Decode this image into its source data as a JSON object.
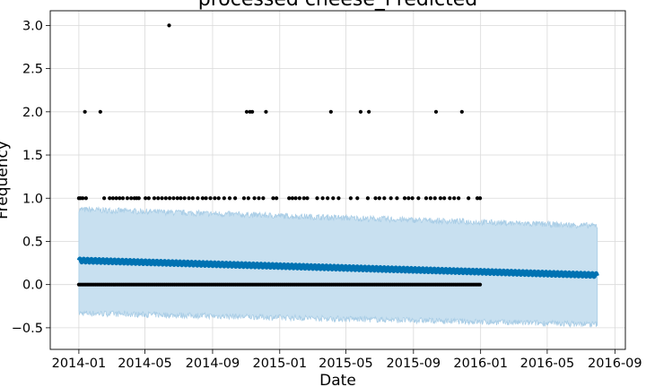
{
  "chart_data": {
    "type": "line",
    "title": "processed cheese_Predicted",
    "xlabel": "Date",
    "ylabel": "Frequency",
    "grid": true,
    "x_range": [
      "2013-11-10",
      "2016-09-20"
    ],
    "ylim": [
      -0.75,
      3.17
    ],
    "x_ticks": [
      "2014-01",
      "2014-05",
      "2014-09",
      "2015-01",
      "2015-05",
      "2015-09",
      "2016-01",
      "2016-05",
      "2016-09"
    ],
    "x_tick_dates": [
      "2014-01-01",
      "2014-05-01",
      "2014-09-01",
      "2015-01-01",
      "2015-05-01",
      "2015-09-01",
      "2016-01-01",
      "2016-05-01",
      "2016-09-01"
    ],
    "y_ticks": [
      -0.5,
      0.0,
      0.5,
      1.0,
      1.5,
      2.0,
      2.5,
      3.0
    ],
    "y_tick_labels": [
      "−0.5",
      "0.0",
      "0.5",
      "1.0",
      "1.5",
      "2.0",
      "2.5",
      "3.0"
    ],
    "colors": {
      "forecast_line": "#0072b2",
      "uncertainty_band": "#c8e0f0",
      "band_edge": "#a9cde6",
      "observed_points": "#000000"
    },
    "forecast": {
      "start": "2014-01-01",
      "end": "2016-07-31",
      "yhat_start": 0.28,
      "yhat_end": 0.11,
      "weekly_amplitude": 0.022,
      "lower_start": -0.33,
      "lower_end": -0.46,
      "upper_start": 0.87,
      "upper_end": 0.68
    },
    "observed": [
      {
        "x": "2014-01-01",
        "y": 1
      },
      {
        "x": "2014-01-04",
        "y": 1
      },
      {
        "x": "2014-01-08",
        "y": 1
      },
      {
        "x": "2014-01-12",
        "y": 2
      },
      {
        "x": "2014-01-14",
        "y": 1
      },
      {
        "x": "2014-02-09",
        "y": 2
      },
      {
        "x": "2014-02-16",
        "y": 1
      },
      {
        "x": "2014-02-26",
        "y": 1
      },
      {
        "x": "2014-03-04",
        "y": 1
      },
      {
        "x": "2014-03-10",
        "y": 1
      },
      {
        "x": "2014-03-16",
        "y": 1
      },
      {
        "x": "2014-03-22",
        "y": 1
      },
      {
        "x": "2014-03-30",
        "y": 1
      },
      {
        "x": "2014-04-06",
        "y": 1
      },
      {
        "x": "2014-04-12",
        "y": 1
      },
      {
        "x": "2014-04-16",
        "y": 1
      },
      {
        "x": "2014-04-20",
        "y": 1
      },
      {
        "x": "2014-05-02",
        "y": 1
      },
      {
        "x": "2014-05-08",
        "y": 1
      },
      {
        "x": "2014-05-18",
        "y": 1
      },
      {
        "x": "2014-05-25",
        "y": 1
      },
      {
        "x": "2014-06-01",
        "y": 1
      },
      {
        "x": "2014-06-08",
        "y": 1
      },
      {
        "x": "2014-06-14",
        "y": 3
      },
      {
        "x": "2014-06-15",
        "y": 1
      },
      {
        "x": "2014-06-22",
        "y": 1
      },
      {
        "x": "2014-06-29",
        "y": 1
      },
      {
        "x": "2014-07-05",
        "y": 1
      },
      {
        "x": "2014-07-12",
        "y": 1
      },
      {
        "x": "2014-07-20",
        "y": 1
      },
      {
        "x": "2014-07-27",
        "y": 1
      },
      {
        "x": "2014-08-05",
        "y": 1
      },
      {
        "x": "2014-08-14",
        "y": 1
      },
      {
        "x": "2014-08-20",
        "y": 1
      },
      {
        "x": "2014-08-28",
        "y": 1
      },
      {
        "x": "2014-09-05",
        "y": 1
      },
      {
        "x": "2014-09-12",
        "y": 1
      },
      {
        "x": "2014-09-22",
        "y": 1
      },
      {
        "x": "2014-10-02",
        "y": 1
      },
      {
        "x": "2014-10-12",
        "y": 1
      },
      {
        "x": "2014-10-28",
        "y": 1
      },
      {
        "x": "2014-11-02",
        "y": 2
      },
      {
        "x": "2014-11-05",
        "y": 1
      },
      {
        "x": "2014-11-08",
        "y": 2
      },
      {
        "x": "2014-11-12",
        "y": 2
      },
      {
        "x": "2014-11-16",
        "y": 1
      },
      {
        "x": "2014-11-24",
        "y": 1
      },
      {
        "x": "2014-12-02",
        "y": 1
      },
      {
        "x": "2014-12-07",
        "y": 2
      },
      {
        "x": "2014-12-20",
        "y": 1
      },
      {
        "x": "2014-12-26",
        "y": 1
      },
      {
        "x": "2015-01-18",
        "y": 1
      },
      {
        "x": "2015-01-24",
        "y": 1
      },
      {
        "x": "2015-01-30",
        "y": 1
      },
      {
        "x": "2015-02-06",
        "y": 1
      },
      {
        "x": "2015-02-14",
        "y": 1
      },
      {
        "x": "2015-02-20",
        "y": 1
      },
      {
        "x": "2015-03-10",
        "y": 1
      },
      {
        "x": "2015-03-20",
        "y": 1
      },
      {
        "x": "2015-03-29",
        "y": 1
      },
      {
        "x": "2015-04-04",
        "y": 2
      },
      {
        "x": "2015-04-08",
        "y": 1
      },
      {
        "x": "2015-04-18",
        "y": 1
      },
      {
        "x": "2015-05-10",
        "y": 1
      },
      {
        "x": "2015-05-22",
        "y": 1
      },
      {
        "x": "2015-05-28",
        "y": 2
      },
      {
        "x": "2015-06-10",
        "y": 1
      },
      {
        "x": "2015-06-12",
        "y": 2
      },
      {
        "x": "2015-06-24",
        "y": 1
      },
      {
        "x": "2015-07-01",
        "y": 1
      },
      {
        "x": "2015-07-10",
        "y": 1
      },
      {
        "x": "2015-07-22",
        "y": 1
      },
      {
        "x": "2015-08-02",
        "y": 1
      },
      {
        "x": "2015-08-16",
        "y": 1
      },
      {
        "x": "2015-08-23",
        "y": 1
      },
      {
        "x": "2015-08-30",
        "y": 1
      },
      {
        "x": "2015-09-10",
        "y": 1
      },
      {
        "x": "2015-09-24",
        "y": 1
      },
      {
        "x": "2015-10-02",
        "y": 1
      },
      {
        "x": "2015-10-10",
        "y": 1
      },
      {
        "x": "2015-10-12",
        "y": 2
      },
      {
        "x": "2015-10-20",
        "y": 1
      },
      {
        "x": "2015-10-27",
        "y": 1
      },
      {
        "x": "2015-11-06",
        "y": 1
      },
      {
        "x": "2015-11-14",
        "y": 1
      },
      {
        "x": "2015-11-22",
        "y": 1
      },
      {
        "x": "2015-11-28",
        "y": 2
      },
      {
        "x": "2015-12-10",
        "y": 1
      },
      {
        "x": "2015-12-26",
        "y": 1
      },
      {
        "x": "2015-12-31",
        "y": 1
      }
    ],
    "zero_observations": {
      "start": "2014-01-01",
      "end": "2015-12-31",
      "every_days": 3,
      "y": 0
    }
  }
}
